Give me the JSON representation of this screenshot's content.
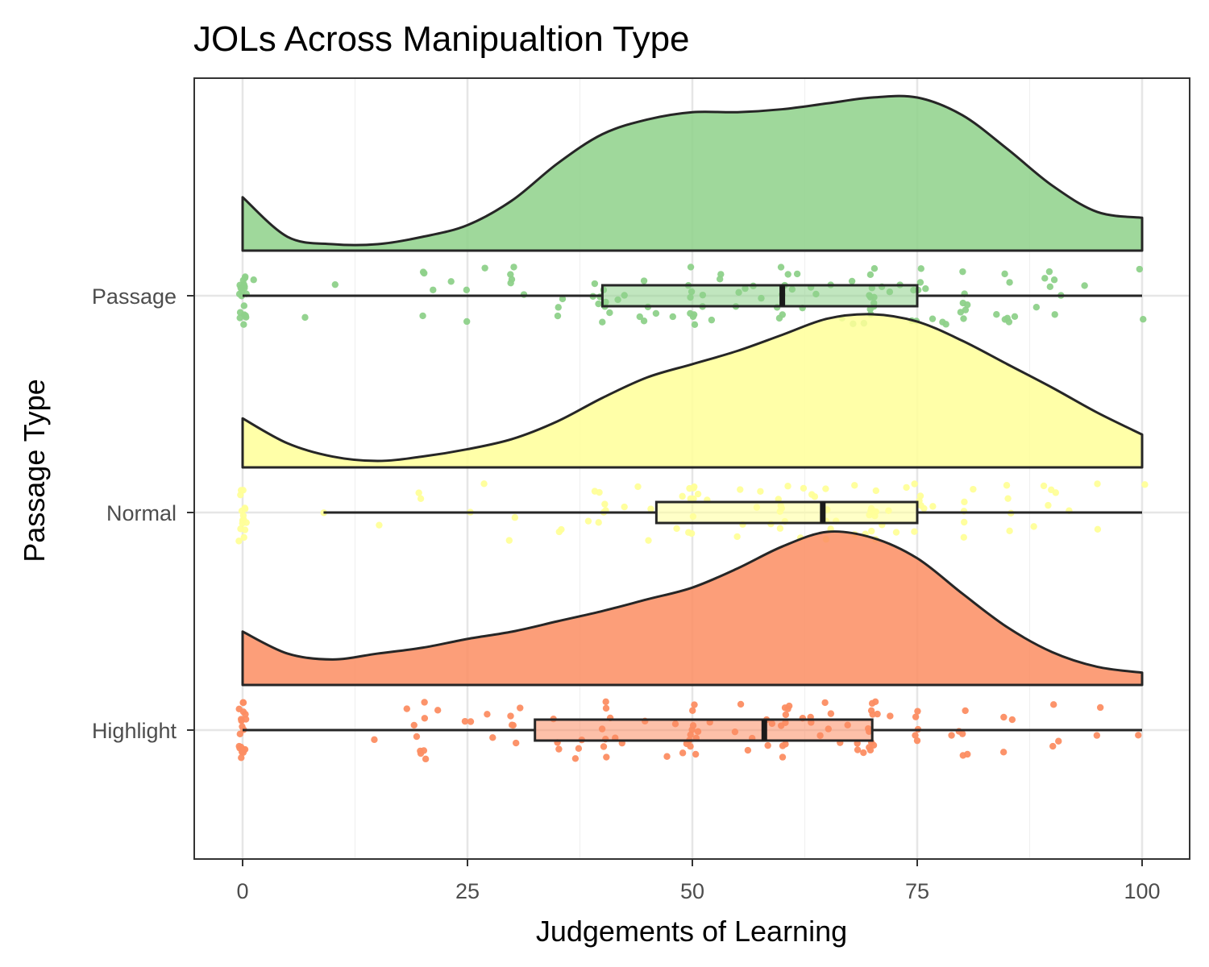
{
  "chart_data": {
    "type": "raincloud",
    "title": "JOLs Across Manipualtion Type",
    "xlabel": "Judgements of Learning",
    "ylabel": "Passage Type",
    "xlim": [
      -5.5,
      105.5
    ],
    "x_ticks": [
      0,
      25,
      50,
      75,
      100
    ],
    "x_tick_labels": [
      "0",
      "25",
      "50",
      "75",
      "100"
    ],
    "grid": true,
    "categories": [
      "Passage",
      "Normal",
      "Highlight"
    ],
    "series": [
      {
        "name": "Passage",
        "color": "#8ed18a",
        "box": {
          "min": 0,
          "q1": 40,
          "median": 60,
          "q3": 75,
          "max": 100
        },
        "density": [
          [
            0,
            0.32
          ],
          [
            5,
            0.05
          ],
          [
            10,
            0.0
          ],
          [
            15,
            0.0
          ],
          [
            20,
            0.05
          ],
          [
            25,
            0.13
          ],
          [
            30,
            0.3
          ],
          [
            35,
            0.55
          ],
          [
            40,
            0.75
          ],
          [
            45,
            0.85
          ],
          [
            50,
            0.9
          ],
          [
            55,
            0.9
          ],
          [
            60,
            0.92
          ],
          [
            65,
            0.96
          ],
          [
            70,
            1.0
          ],
          [
            75,
            1.0
          ],
          [
            80,
            0.88
          ],
          [
            85,
            0.65
          ],
          [
            90,
            0.4
          ],
          [
            95,
            0.22
          ],
          [
            100,
            0.18
          ]
        ],
        "points": [
          0,
          0,
          0,
          0,
          0,
          0,
          0,
          0,
          0,
          0,
          0,
          0,
          0,
          0,
          0,
          0,
          0,
          0,
          0,
          1,
          7,
          10,
          20,
          20,
          20,
          21,
          23,
          25,
          25,
          27,
          30,
          30,
          30,
          30,
          31,
          35,
          35,
          36,
          39,
          39,
          40,
          40,
          40,
          40,
          40,
          40,
          41,
          42,
          42,
          44,
          45,
          45,
          45,
          46,
          48,
          50,
          50,
          50,
          50,
          50,
          50,
          50,
          50,
          51,
          51,
          52,
          53,
          53,
          55,
          55,
          56,
          57,
          58,
          59,
          60,
          60,
          60,
          60,
          60,
          61,
          61,
          62,
          62,
          63,
          64,
          65,
          67,
          68,
          68,
          69,
          70,
          70,
          70,
          70,
          70,
          70,
          70,
          70,
          70,
          70,
          71,
          72,
          73,
          74,
          75,
          75,
          75,
          75,
          75,
          76,
          77,
          78,
          78,
          80,
          80,
          80,
          80,
          80,
          80,
          81,
          84,
          85,
          85,
          85,
          85,
          85,
          86,
          88,
          89,
          90,
          90,
          90,
          90,
          91,
          94,
          100,
          100
        ]
      },
      {
        "name": "Normal",
        "color": "#ffff99",
        "box": {
          "min": 9,
          "q1": 46,
          "median": 64.5,
          "q3": 75,
          "max": 100
        },
        "density": [
          [
            0,
            0.29
          ],
          [
            5,
            0.12
          ],
          [
            10,
            0.03
          ],
          [
            15,
            0.0
          ],
          [
            20,
            0.03
          ],
          [
            25,
            0.08
          ],
          [
            30,
            0.15
          ],
          [
            35,
            0.27
          ],
          [
            40,
            0.43
          ],
          [
            45,
            0.57
          ],
          [
            50,
            0.66
          ],
          [
            55,
            0.75
          ],
          [
            60,
            0.86
          ],
          [
            65,
            0.97
          ],
          [
            70,
            1.0
          ],
          [
            75,
            0.95
          ],
          [
            80,
            0.82
          ],
          [
            85,
            0.66
          ],
          [
            90,
            0.5
          ],
          [
            95,
            0.33
          ],
          [
            100,
            0.18
          ]
        ],
        "points": [
          0,
          0,
          0,
          0,
          0,
          0,
          0,
          0,
          0,
          0,
          0,
          0,
          0,
          0,
          0,
          9,
          15,
          20,
          20,
          25,
          27,
          30,
          30,
          35,
          35,
          38,
          39,
          40,
          40,
          40,
          40,
          40,
          42,
          44,
          45,
          45,
          48,
          49,
          50,
          50,
          50,
          50,
          50,
          50,
          50,
          50,
          51,
          52,
          55,
          55,
          56,
          57,
          58,
          59,
          60,
          60,
          60,
          60,
          60,
          60,
          61,
          62,
          62,
          63,
          64,
          65,
          65,
          65,
          65,
          65,
          66,
          68,
          68,
          69,
          70,
          70,
          70,
          70,
          70,
          70,
          70,
          70,
          70,
          70,
          71,
          72,
          73,
          74,
          75,
          75,
          75,
          75,
          75,
          76,
          77,
          80,
          80,
          80,
          80,
          81,
          85,
          85,
          85,
          85,
          88,
          89,
          90,
          90,
          90,
          92,
          95,
          95,
          100
        ]
      },
      {
        "name": "Highlight",
        "color": "#fc8d62",
        "box": {
          "min": 0,
          "q1": 32.5,
          "median": 58,
          "q3": 70,
          "max": 100
        },
        "density": [
          [
            0,
            0.32
          ],
          [
            5,
            0.17
          ],
          [
            10,
            0.13
          ],
          [
            15,
            0.17
          ],
          [
            20,
            0.21
          ],
          [
            25,
            0.27
          ],
          [
            30,
            0.32
          ],
          [
            35,
            0.39
          ],
          [
            40,
            0.46
          ],
          [
            45,
            0.54
          ],
          [
            50,
            0.62
          ],
          [
            55,
            0.75
          ],
          [
            60,
            0.9
          ],
          [
            65,
            1.0
          ],
          [
            70,
            0.96
          ],
          [
            75,
            0.82
          ],
          [
            80,
            0.58
          ],
          [
            85,
            0.35
          ],
          [
            90,
            0.18
          ],
          [
            95,
            0.08
          ],
          [
            100,
            0.04
          ]
        ],
        "points": [
          0,
          0,
          0,
          0,
          0,
          0,
          0,
          0,
          0,
          0,
          0,
          0,
          0,
          0,
          0,
          0,
          0,
          0,
          0,
          15,
          18,
          19,
          19,
          20,
          20,
          20,
          20,
          20,
          20,
          22,
          25,
          25,
          27,
          28,
          30,
          30,
          30,
          30,
          31,
          35,
          35,
          35,
          37,
          37,
          38,
          40,
          40,
          40,
          40,
          40,
          40,
          41,
          41,
          42,
          45,
          47,
          48,
          49,
          49,
          50,
          50,
          50,
          50,
          50,
          50,
          50,
          50,
          50,
          51,
          52,
          55,
          55,
          56,
          57,
          58,
          58,
          59,
          60,
          60,
          60,
          60,
          60,
          60,
          60,
          61,
          61,
          62,
          63,
          63,
          64,
          65,
          65,
          65,
          66,
          67,
          68,
          68,
          69,
          70,
          70,
          70,
          70,
          70,
          70,
          70,
          70,
          70,
          70,
          71,
          72,
          75,
          75,
          75,
          75,
          75,
          79,
          80,
          80,
          80,
          80,
          81,
          85,
          85,
          86,
          90,
          90,
          91,
          95,
          95,
          100
        ]
      }
    ]
  }
}
